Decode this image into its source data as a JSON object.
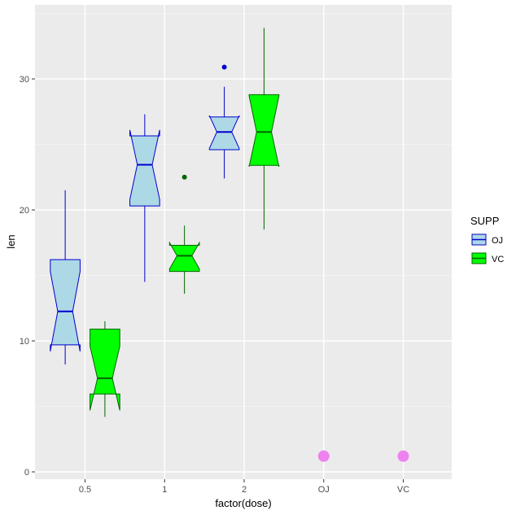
{
  "chart_data": {
    "type": "boxplot",
    "xlabel": "factor(dose)",
    "ylabel": "len",
    "categories": [
      "0.5",
      "1",
      "2",
      "OJ",
      "VC"
    ],
    "ylim": [
      0,
      35
    ],
    "yticks": [
      0,
      10,
      20,
      30
    ],
    "grid": true,
    "legend": {
      "title": "SUPP",
      "placement": "right",
      "entries": [
        {
          "label": "OJ",
          "fill": "#add8e6",
          "stroke": "#0000cd"
        },
        {
          "label": "VC",
          "fill": "#00ff00",
          "stroke": "#006400"
        }
      ]
    },
    "series": [
      {
        "name": "OJ",
        "fill": "#add8e6",
        "stroke": "#0000cd",
        "boxes": [
          {
            "category": "0.5",
            "min": 8.2,
            "q1": 9.7,
            "median": 12.25,
            "q3": 16.2,
            "max": 21.5,
            "notch_low": 9.2,
            "notch_high": 15.3,
            "outliers": []
          },
          {
            "category": "1",
            "min": 14.5,
            "q1": 20.3,
            "median": 23.45,
            "q3": 25.65,
            "max": 27.3,
            "notch_low": 20.8,
            "notch_high": 26.1,
            "outliers": []
          },
          {
            "category": "2",
            "min": 22.4,
            "q1": 24.6,
            "median": 25.95,
            "q3": 27.1,
            "max": 29.4,
            "notch_low": 24.7,
            "notch_high": 27.2,
            "outliers": [
              30.9
            ]
          }
        ]
      },
      {
        "name": "VC",
        "fill": "#00ff00",
        "stroke": "#006400",
        "boxes": [
          {
            "category": "0.5",
            "min": 4.2,
            "q1": 5.95,
            "median": 7.15,
            "q3": 10.9,
            "max": 11.5,
            "notch_low": 4.7,
            "notch_high": 9.6,
            "outliers": []
          },
          {
            "category": "1",
            "min": 13.6,
            "q1": 15.3,
            "median": 16.5,
            "q3": 17.3,
            "max": 18.8,
            "notch_low": 15.5,
            "notch_high": 17.5,
            "outliers": [
              22.5
            ]
          },
          {
            "category": "2",
            "min": 18.5,
            "q1": 23.4,
            "median": 25.95,
            "q3": 28.8,
            "max": 33.9,
            "notch_low": 23.3,
            "notch_high": 28.7,
            "outliers": []
          }
        ]
      }
    ],
    "points": [
      {
        "category": "OJ",
        "y": 1.2,
        "color": "#ee82ee"
      },
      {
        "category": "VC",
        "y": 1.2,
        "color": "#ee82ee"
      }
    ],
    "colors": {
      "panel_background": "#ebebeb",
      "grid_major": "#ffffff",
      "grid_minor": "#f5f5f5"
    }
  }
}
